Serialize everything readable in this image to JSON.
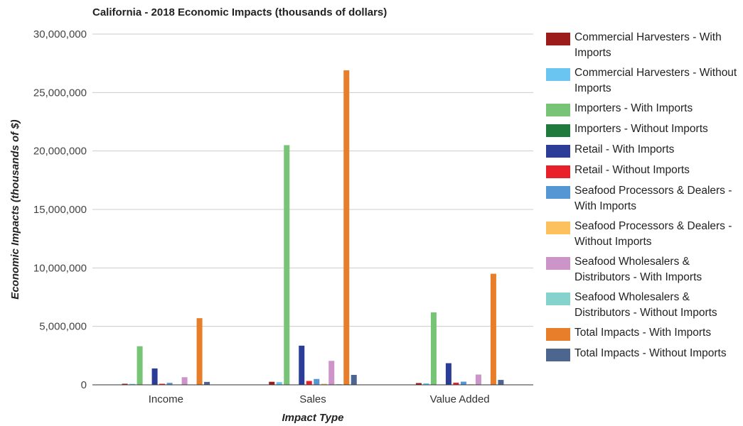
{
  "chart_data": {
    "type": "bar",
    "title": "California - 2018 Economic Impacts (thousands of dollars)",
    "xlabel": "Impact Type",
    "ylabel": "Economic Impacts (thousands of $)",
    "ylim": [
      0,
      30000000
    ],
    "yticks": [
      0,
      5000000,
      10000000,
      15000000,
      20000000,
      25000000,
      30000000
    ],
    "ytick_labels": [
      "0",
      "5,000,000",
      "10,000,000",
      "15,000,000",
      "20,000,000",
      "25,000,000",
      "30,000,000"
    ],
    "grid": true,
    "legend_position": "right",
    "categories": [
      "Income",
      "Sales",
      "Value Added"
    ],
    "series": [
      {
        "name": "Commercial Harvesters - With Imports",
        "color": "#9c1c1c",
        "values": [
          90000,
          260000,
          150000
        ]
      },
      {
        "name": "Commercial Harvesters - Without Imports",
        "color": "#6ac5f0",
        "values": [
          80000,
          230000,
          130000
        ]
      },
      {
        "name": "Importers - With Imports",
        "color": "#77c477",
        "values": [
          3300000,
          20500000,
          6200000
        ]
      },
      {
        "name": "Importers - Without Imports",
        "color": "#1f7a3c",
        "values": [
          0,
          0,
          0
        ]
      },
      {
        "name": "Retail - With Imports",
        "color": "#2b3d96",
        "values": [
          1400000,
          3350000,
          1850000
        ]
      },
      {
        "name": "Retail - Without Imports",
        "color": "#e8202a",
        "values": [
          90000,
          330000,
          180000
        ]
      },
      {
        "name": "Seafood Processors & Dealers - With Imports",
        "color": "#5596d4",
        "values": [
          170000,
          500000,
          270000
        ]
      },
      {
        "name": "Seafood Processors & Dealers - Without Imports",
        "color": "#fcc15c",
        "values": [
          30000,
          90000,
          50000
        ]
      },
      {
        "name": "Seafood Wholesalers & Distributors - With Imports",
        "color": "#cc94c8",
        "values": [
          650000,
          2050000,
          880000
        ]
      },
      {
        "name": "Seafood Wholesalers & Distributors - Without Imports",
        "color": "#86d2cc",
        "values": [
          20000,
          60000,
          30000
        ]
      },
      {
        "name": "Total Impacts - With Imports",
        "color": "#e87e2a",
        "values": [
          5700000,
          26900000,
          9500000
        ]
      },
      {
        "name": "Total Impacts - Without Imports",
        "color": "#4d6690",
        "values": [
          250000,
          850000,
          420000
        ]
      }
    ]
  },
  "legend": {
    "items": [
      {
        "label": "Commercial Harvesters - With Imports",
        "color": "#9c1c1c"
      },
      {
        "label": "Commercial Harvesters - Without Imports",
        "color": "#6ac5f0"
      },
      {
        "label": "Importers - With Imports",
        "color": "#77c477"
      },
      {
        "label": "Importers - Without Imports",
        "color": "#1f7a3c"
      },
      {
        "label": "Retail - With Imports",
        "color": "#2b3d96"
      },
      {
        "label": "Retail - Without Imports",
        "color": "#e8202a"
      },
      {
        "label": "Seafood Processors & Dealers - With Imports",
        "color": "#5596d4"
      },
      {
        "label": "Seafood Processors & Dealers - Without Imports",
        "color": "#fcc15c"
      },
      {
        "label": "Seafood Wholesalers & Distributors - With Imports",
        "color": "#cc94c8"
      },
      {
        "label": "Seafood Wholesalers & Distributors - Without Imports",
        "color": "#86d2cc"
      },
      {
        "label": "Total Impacts - With Imports",
        "color": "#e87e2a"
      },
      {
        "label": "Total Impacts - Without Imports",
        "color": "#4d6690"
      }
    ]
  }
}
